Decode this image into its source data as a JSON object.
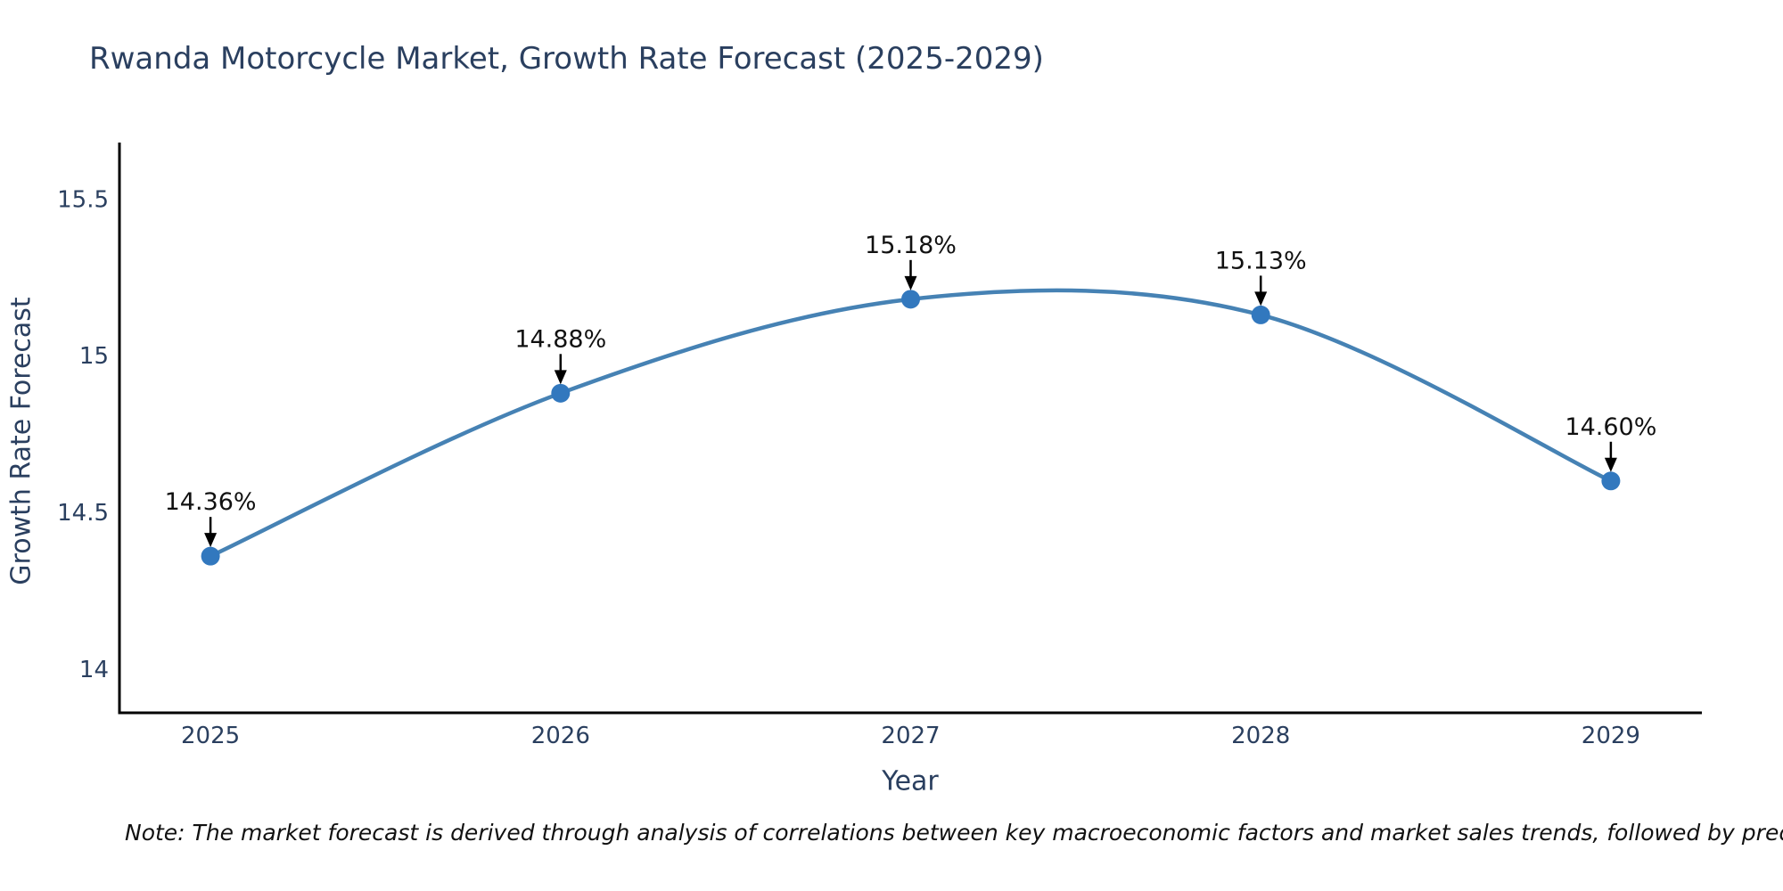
{
  "chart_data": {
    "type": "line",
    "title": "Rwanda Motorcycle Market, Growth Rate Forecast (2025-2029)",
    "xlabel": "Year",
    "ylabel": "Growth Rate Forecast",
    "x": [
      2025,
      2026,
      2027,
      2028,
      2029
    ],
    "series": [
      {
        "name": "Growth Rate Forecast",
        "values": [
          14.36,
          14.88,
          15.18,
          15.13,
          14.6
        ]
      }
    ],
    "point_labels": [
      "14.36%",
      "14.88%",
      "15.18%",
      "15.13%",
      "14.60%"
    ],
    "yticks": [
      14,
      14.5,
      15,
      15.5
    ],
    "ytick_labels": [
      "14",
      "14.5",
      "15",
      "15.5"
    ],
    "xtick_labels": [
      "2025",
      "2026",
      "2027",
      "2028",
      "2029"
    ],
    "xlim": [
      2024.74,
      2029.26
    ],
    "ylim": [
      13.86,
      15.68
    ],
    "grid": false,
    "legend": "none",
    "line_shape": "spline",
    "annotation_style": "down-arrow-to-point",
    "colors": {
      "line": "#4682b4",
      "marker": "#3278be",
      "axis": "#000000",
      "text": "#2a3f5f",
      "annotation": "#111111"
    }
  },
  "note": "Note: The market forecast is derived through analysis of correlations between key macroeconomic factors and market sales trends, followed by predictive modeling to project future sal"
}
